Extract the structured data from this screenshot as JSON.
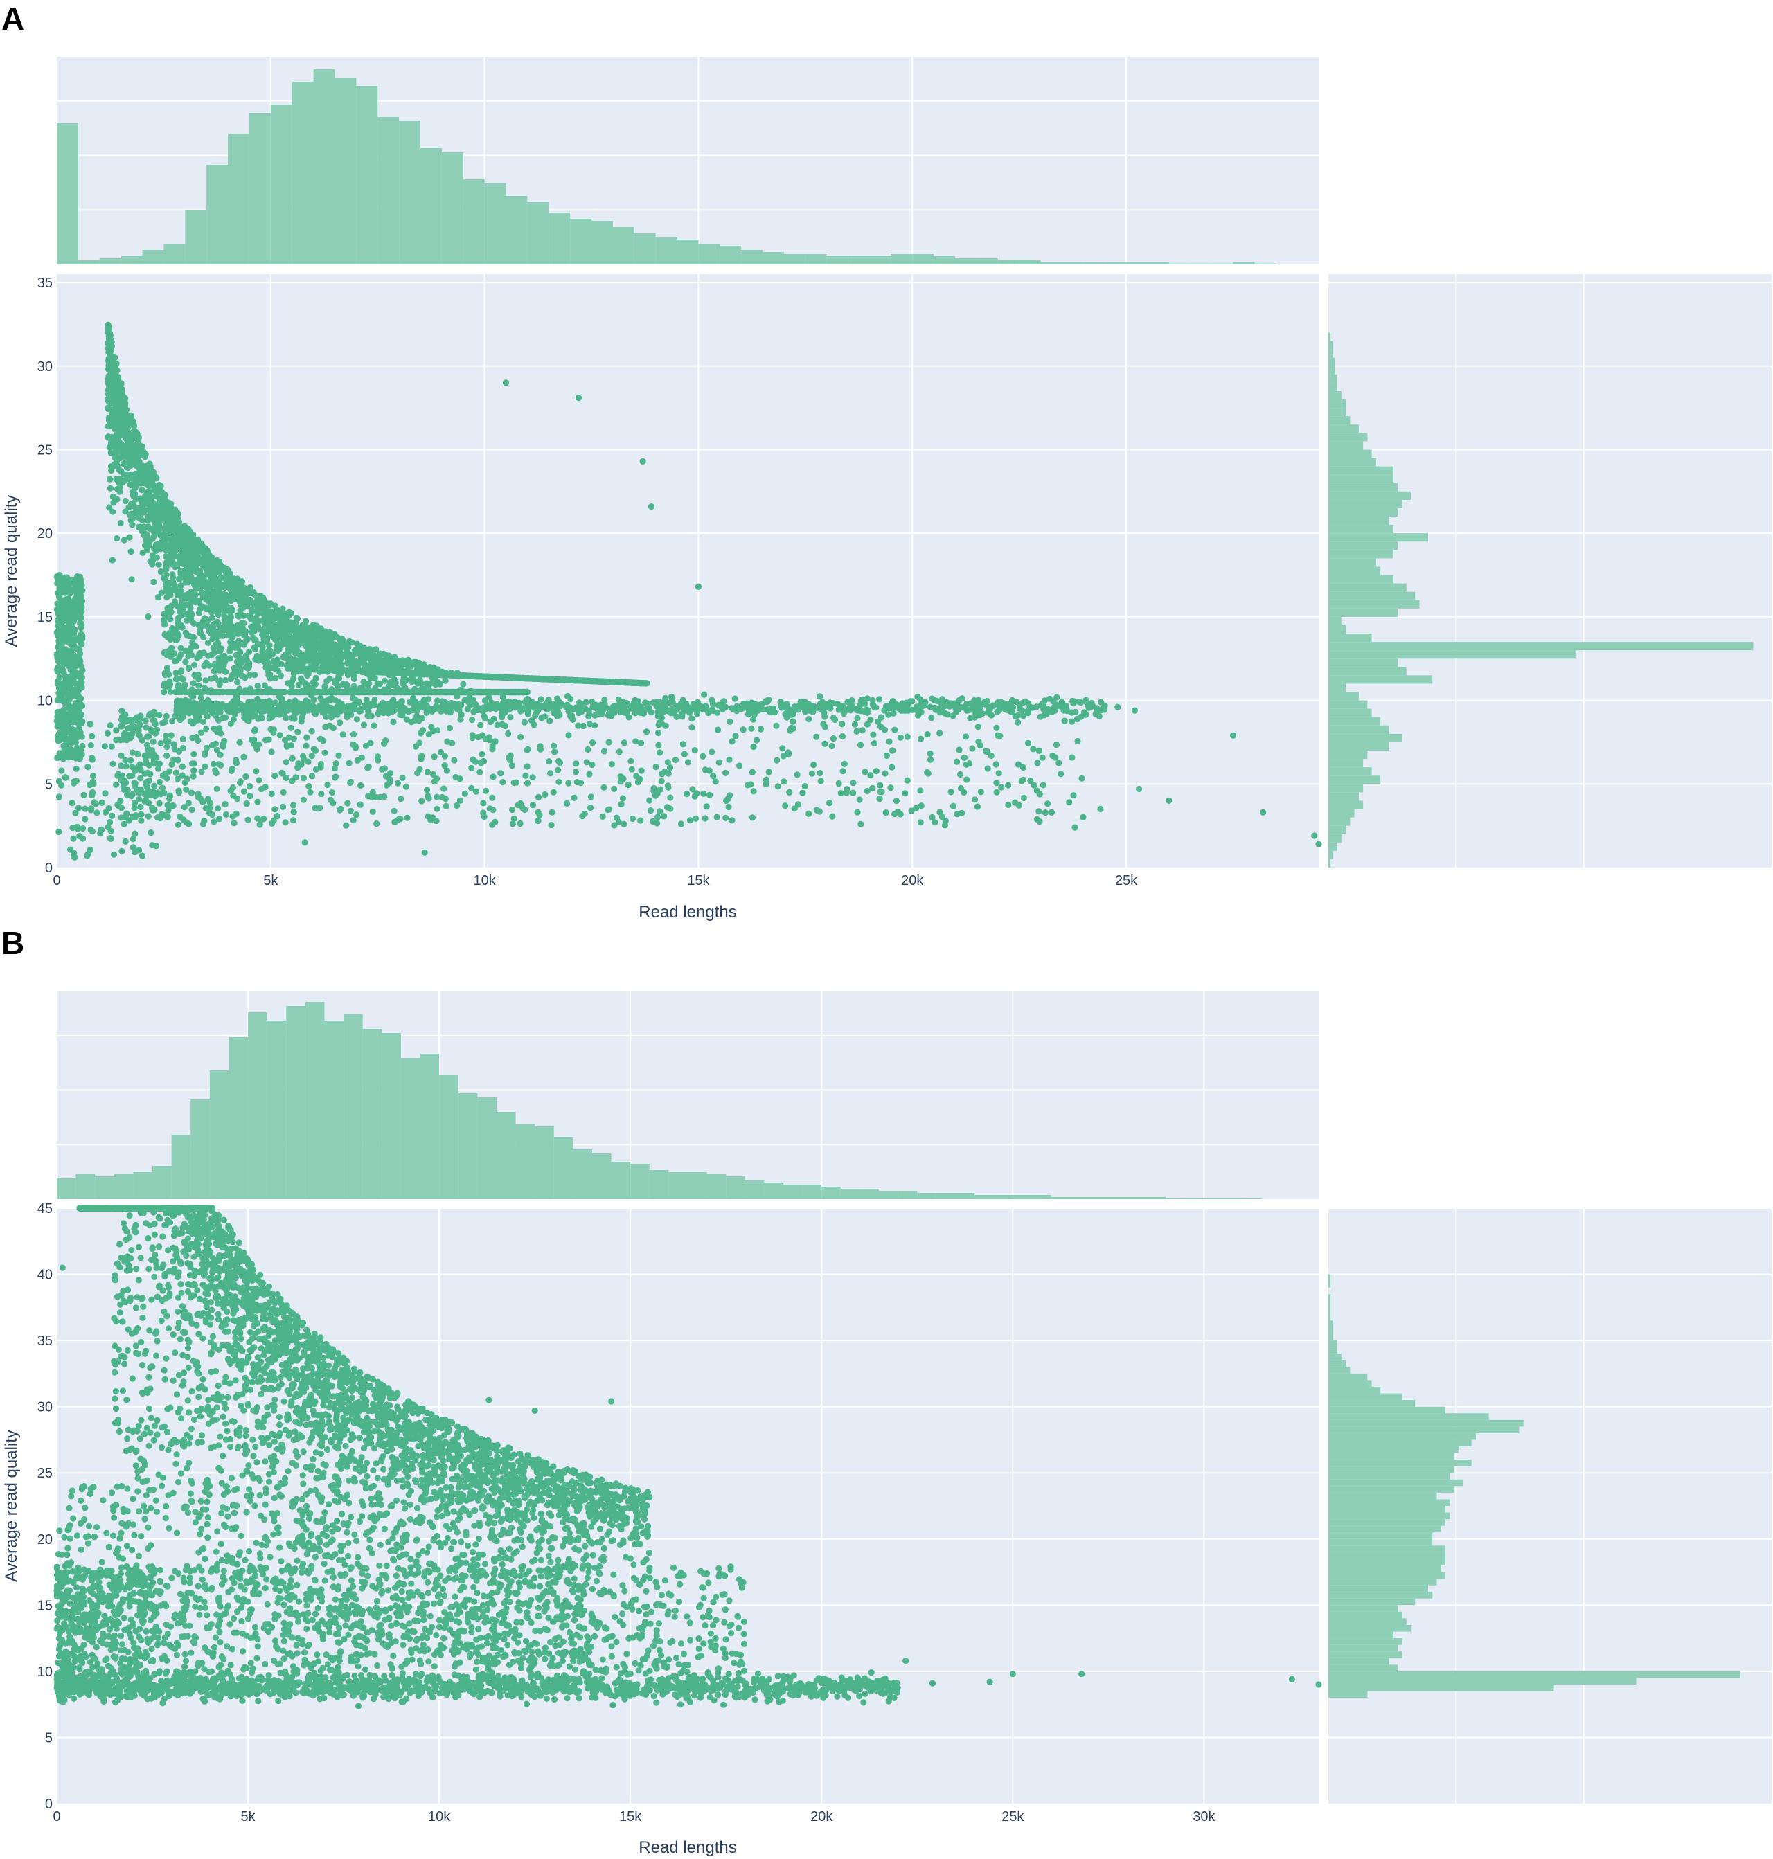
{
  "panels": [
    {
      "letter": "A",
      "chart_data": {
        "type": "scatter",
        "xlabel": "Read lengths",
        "ylabel": "Average read quality",
        "xlim": [
          0,
          29500
        ],
        "ylim": [
          0,
          35.5
        ],
        "xticks": [
          0,
          5000,
          10000,
          15000,
          20000,
          25000
        ],
        "xtick_labels": [
          "0",
          "5k",
          "10k",
          "15k",
          "20k",
          "25k"
        ],
        "yticks": [
          0,
          5,
          10,
          15,
          20,
          25,
          30,
          35
        ],
        "ytick_labels": [
          "0",
          "5",
          "10",
          "15",
          "20",
          "25",
          "30",
          "35"
        ],
        "grid": true,
        "point_color": "#4cb38a",
        "hist_color": "#8fcfb7",
        "background": "#e5ecf6",
        "scatter_components": [
          {
            "kind": "curve",
            "count": 2600,
            "x_range": [
              1200,
              13800
            ],
            "a": 42000,
            "spread": 0.12
          },
          {
            "kind": "curve_inner",
            "count": 1400,
            "x_range": [
              2500,
              11000
            ],
            "a": 42000,
            "y_frac": [
              0.45,
              0.95
            ]
          },
          {
            "kind": "band",
            "count": 1100,
            "x_range": [
              2800,
              24500
            ],
            "y": 9.6,
            "sd": 0.25
          },
          {
            "kind": "lower",
            "count": 900,
            "x_range": [
              1500,
              24000
            ],
            "y_range": [
              2.5,
              9.5
            ]
          },
          {
            "kind": "left_column",
            "count": 500,
            "x_range": [
              0,
              600
            ],
            "y_range": [
              6.5,
              17.5
            ]
          },
          {
            "kind": "left_sparse",
            "count": 140,
            "x_range": [
              0,
              2500
            ],
            "y_range": [
              0.6,
              9
            ]
          }
        ],
        "scatter_outliers": [
          {
            "x": 29400,
            "y": 1.9
          },
          {
            "x": 29500,
            "y": 1.4
          },
          {
            "x": 27500,
            "y": 7.9
          },
          {
            "x": 28200,
            "y": 3.3
          },
          {
            "x": 26000,
            "y": 4.0
          },
          {
            "x": 25300,
            "y": 4.7
          },
          {
            "x": 24800,
            "y": 9.6
          },
          {
            "x": 25200,
            "y": 9.4
          },
          {
            "x": 24400,
            "y": 3.5
          },
          {
            "x": 23800,
            "y": 2.4
          },
          {
            "x": 10500,
            "y": 29.0
          },
          {
            "x": 12200,
            "y": 28.1
          },
          {
            "x": 13700,
            "y": 24.3
          },
          {
            "x": 13900,
            "y": 21.6
          },
          {
            "x": 15000,
            "y": 16.8
          },
          {
            "x": 2000,
            "y": 0.7
          },
          {
            "x": 8600,
            "y": 0.9
          },
          {
            "x": 5800,
            "y": 1.5
          }
        ],
        "hist_x": [
          0.68,
          0.02,
          0.03,
          0.04,
          0.07,
          0.1,
          0.26,
          0.48,
          0.63,
          0.73,
          0.77,
          0.88,
          0.94,
          0.9,
          0.86,
          0.71,
          0.69,
          0.56,
          0.54,
          0.41,
          0.39,
          0.33,
          0.3,
          0.25,
          0.22,
          0.21,
          0.18,
          0.15,
          0.13,
          0.12,
          0.1,
          0.09,
          0.07,
          0.06,
          0.05,
          0.05,
          0.04,
          0.04,
          0.04,
          0.05,
          0.05,
          0.04,
          0.03,
          0.03,
          0.02,
          0.02,
          0.01,
          0.01,
          0.01,
          0.01,
          0.01,
          0.01,
          0.005,
          0.005,
          0.005,
          0.01,
          0.005,
          0.0,
          0.0
        ],
        "hist_x_bin_width": 500,
        "hist_y": [
          0.005,
          0.01,
          0.02,
          0.03,
          0.04,
          0.05,
          0.06,
          0.08,
          0.07,
          0.08,
          0.12,
          0.1,
          0.08,
          0.09,
          0.14,
          0.17,
          0.14,
          0.12,
          0.1,
          0.09,
          0.07,
          0.04,
          0.24,
          0.18,
          0.16,
          0.57,
          0.98,
          0.1,
          0.04,
          0.03,
          0.16,
          0.21,
          0.2,
          0.18,
          0.15,
          0.12,
          0.11,
          0.15,
          0.16,
          0.23,
          0.15,
          0.14,
          0.16,
          0.17,
          0.19,
          0.16,
          0.15,
          0.15,
          0.11,
          0.1,
          0.08,
          0.09,
          0.07,
          0.05,
          0.04,
          0.04,
          0.03,
          0.02,
          0.02,
          0.015,
          0.015,
          0.01,
          0.01,
          0.005
        ],
        "hist_y_bin_width": 0.5
      }
    },
    {
      "letter": "B",
      "chart_data": {
        "type": "scatter",
        "xlabel": "Read lengths",
        "ylabel": "Average read quality",
        "xlim": [
          0,
          33000
        ],
        "ylim": [
          0,
          45
        ],
        "xticks": [
          0,
          5000,
          10000,
          15000,
          20000,
          25000,
          30000
        ],
        "xtick_labels": [
          "0",
          "5k",
          "10k",
          "15k",
          "20k",
          "25k",
          "30k"
        ],
        "yticks": [
          0,
          5,
          10,
          15,
          20,
          25,
          30,
          35,
          40,
          45
        ],
        "ytick_labels": [
          "0",
          "5",
          "10",
          "15",
          "20",
          "25",
          "30",
          "35",
          "40",
          "45"
        ],
        "grid": true,
        "point_color": "#4cb38a",
        "hist_color": "#8fcfb7",
        "background": "#e5ecf6",
        "scatter_components": [
          {
            "kind": "curve",
            "count": 3000,
            "x_range": [
              600,
              15500
            ],
            "a": 93000,
            "spread": 0.12
          },
          {
            "kind": "curve_inner",
            "count": 1800,
            "x_range": [
              1500,
              14000
            ],
            "a": 93000,
            "y_frac": [
              0.38,
              0.95
            ]
          },
          {
            "kind": "band",
            "count": 1500,
            "x_range": [
              0,
              22000
            ],
            "y": 8.8,
            "sd": 0.45
          },
          {
            "kind": "lower",
            "count": 1300,
            "x_range": [
              0,
              18000
            ],
            "y_range": [
              9.5,
              18
            ]
          },
          {
            "kind": "left_column",
            "count": 250,
            "x_range": [
              0,
              2500
            ],
            "y_range": [
              8,
              24
            ]
          }
        ],
        "scatter_outliers": [
          {
            "x": 32300,
            "y": 9.4
          },
          {
            "x": 33000,
            "y": 9.0
          },
          {
            "x": 26800,
            "y": 9.8
          },
          {
            "x": 25000,
            "y": 9.8
          },
          {
            "x": 24400,
            "y": 9.2
          },
          {
            "x": 22900,
            "y": 9.1
          },
          {
            "x": 22200,
            "y": 10.8
          },
          {
            "x": 14500,
            "y": 30.4
          },
          {
            "x": 11300,
            "y": 30.5
          },
          {
            "x": 12500,
            "y": 29.7
          },
          {
            "x": 15400,
            "y": 22.5
          },
          {
            "x": 14900,
            "y": 21.2
          },
          {
            "x": 150,
            "y": 40.5
          }
        ],
        "hist_x": [
          0.1,
          0.12,
          0.11,
          0.12,
          0.13,
          0.16,
          0.31,
          0.48,
          0.62,
          0.78,
          0.9,
          0.86,
          0.93,
          0.95,
          0.86,
          0.89,
          0.82,
          0.8,
          0.68,
          0.7,
          0.6,
          0.51,
          0.49,
          0.42,
          0.36,
          0.35,
          0.3,
          0.24,
          0.22,
          0.18,
          0.17,
          0.14,
          0.13,
          0.13,
          0.12,
          0.11,
          0.09,
          0.08,
          0.07,
          0.07,
          0.06,
          0.05,
          0.05,
          0.04,
          0.04,
          0.03,
          0.03,
          0.03,
          0.02,
          0.02,
          0.02,
          0.02,
          0.01,
          0.01,
          0.01,
          0.01,
          0.01,
          0.01,
          0.005,
          0.005,
          0.005,
          0.005,
          0.005,
          0.0,
          0.0,
          0.0,
          0.0
        ],
        "hist_x_bin_width": 500,
        "hist_y": [
          0.0,
          0.0,
          0.0,
          0.0,
          0.0,
          0.0,
          0.0,
          0.0,
          0.0,
          0.0,
          0.0,
          0.0,
          0.0,
          0.0,
          0.0,
          0.0,
          0.09,
          0.52,
          0.71,
          0.95,
          0.16,
          0.14,
          0.17,
          0.16,
          0.17,
          0.15,
          0.19,
          0.18,
          0.17,
          0.16,
          0.2,
          0.24,
          0.23,
          0.25,
          0.27,
          0.26,
          0.27,
          0.27,
          0.27,
          0.24,
          0.24,
          0.26,
          0.27,
          0.28,
          0.27,
          0.28,
          0.25,
          0.29,
          0.31,
          0.28,
          0.29,
          0.33,
          0.29,
          0.3,
          0.33,
          0.34,
          0.44,
          0.45,
          0.37,
          0.27,
          0.2,
          0.17,
          0.12,
          0.1,
          0.09,
          0.05,
          0.04,
          0.03,
          0.02,
          0.02,
          0.01,
          0.01,
          0.01,
          0.005,
          0.005,
          0.005,
          0.005,
          0.0,
          0.005,
          0.005
        ],
        "hist_y_bin_width": 0.5
      }
    }
  ]
}
